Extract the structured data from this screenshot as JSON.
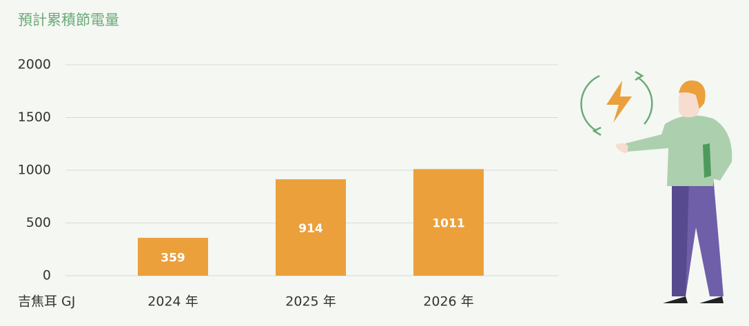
{
  "chart_data": {
    "type": "bar",
    "title": "預計累積節電量",
    "y_label": "吉焦耳 GJ",
    "categories": [
      "2024 年",
      "2025 年",
      "2026 年"
    ],
    "values": [
      359,
      914,
      1011
    ],
    "color": "#eba03c",
    "ylim": [
      0,
      2000
    ],
    "yticks": [
      0,
      500,
      1000,
      1500,
      2000
    ],
    "grid": true
  }
}
